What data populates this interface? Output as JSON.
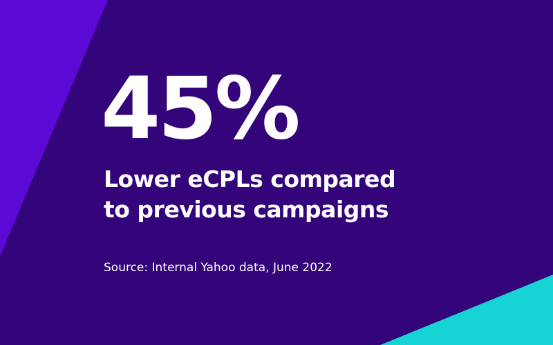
{
  "colors": {
    "background": "#34047a",
    "left_accent": "#5b0ad6",
    "corner_accent": "#17d4d4",
    "text": "#ffffff"
  },
  "stat": {
    "value": "45%"
  },
  "headline": {
    "line1": "Lower eCPLs compared",
    "line2": "to previous campaigns"
  },
  "source": {
    "text": "Source: Internal Yahoo data, June 2022"
  }
}
